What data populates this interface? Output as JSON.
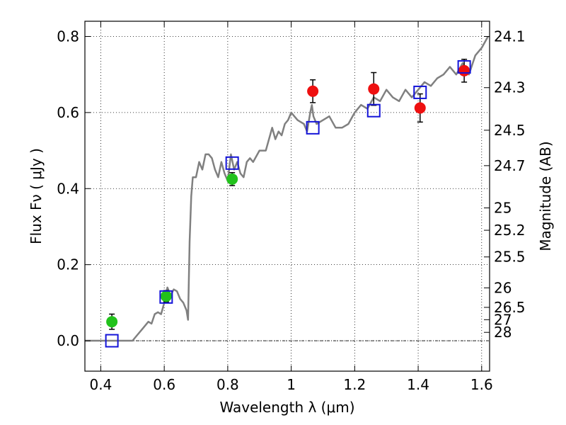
{
  "chart_data": {
    "type": "scatter",
    "xlabel": "Wavelength  λ (μm)",
    "ylabel": "Flux  Fν  ( μJy )",
    "y2label": "Magnitude (AB)",
    "xlim": [
      0.35,
      1.625
    ],
    "ylim": [
      -0.08,
      0.84
    ],
    "grid": true,
    "x_ticks": [
      0.4,
      0.6,
      0.8,
      1.0,
      1.2,
      1.4,
      1.6
    ],
    "x_tick_labels": [
      "0.4",
      "0.6",
      "0.8",
      "1",
      "1.2",
      "1.4",
      "1.6"
    ],
    "y_ticks": [
      0.0,
      0.2,
      0.4,
      0.6,
      0.8
    ],
    "y_tick_labels": [
      "0.0",
      "0.2",
      "0.4",
      "0.6",
      "0.8"
    ],
    "magnitude_ticks": [
      {
        "label": "24.1",
        "mag": 24.1
      },
      {
        "label": "24.3",
        "mag": 24.3
      },
      {
        "label": "24.5",
        "mag": 24.5
      },
      {
        "label": "24.7",
        "mag": 24.7
      },
      {
        "label": "25",
        "mag": 25.0
      },
      {
        "label": "25.2",
        "mag": 25.2
      },
      {
        "label": "25.5",
        "mag": 25.5
      },
      {
        "label": "26",
        "mag": 26.0
      },
      {
        "label": "26.5",
        "mag": 26.5
      },
      {
        "label": "27",
        "mag": 27.0
      },
      {
        "label": "28",
        "mag": 28.0
      }
    ],
    "series": [
      {
        "kind": "line",
        "color": "#808080",
        "x": [
          0.35,
          0.5,
          0.515,
          0.53,
          0.55,
          0.56,
          0.57,
          0.58,
          0.59,
          0.6,
          0.61,
          0.62,
          0.63,
          0.64,
          0.65,
          0.66,
          0.67,
          0.675,
          0.68,
          0.685,
          0.69,
          0.7,
          0.71,
          0.72,
          0.73,
          0.74,
          0.75,
          0.76,
          0.77,
          0.78,
          0.79,
          0.8,
          0.81,
          0.82,
          0.83,
          0.84,
          0.85,
          0.86,
          0.87,
          0.88,
          0.9,
          0.92,
          0.94,
          0.95,
          0.96,
          0.97,
          0.98,
          0.99,
          1.0,
          1.02,
          1.04,
          1.05,
          1.06,
          1.065,
          1.07,
          1.08,
          1.1,
          1.12,
          1.14,
          1.16,
          1.18,
          1.2,
          1.22,
          1.24,
          1.26,
          1.28,
          1.3,
          1.32,
          1.34,
          1.36,
          1.38,
          1.4,
          1.42,
          1.44,
          1.46,
          1.48,
          1.5,
          1.52,
          1.54,
          1.56,
          1.58,
          1.6,
          1.62
        ],
        "y": [
          0.0,
          0.0,
          0.015,
          0.03,
          0.05,
          0.045,
          0.07,
          0.075,
          0.07,
          0.1,
          0.14,
          0.12,
          0.135,
          0.13,
          0.11,
          0.1,
          0.08,
          0.055,
          0.26,
          0.38,
          0.43,
          0.43,
          0.47,
          0.45,
          0.49,
          0.49,
          0.48,
          0.45,
          0.43,
          0.47,
          0.44,
          0.42,
          0.49,
          0.45,
          0.47,
          0.44,
          0.43,
          0.47,
          0.48,
          0.47,
          0.5,
          0.5,
          0.56,
          0.53,
          0.55,
          0.54,
          0.57,
          0.58,
          0.6,
          0.58,
          0.57,
          0.55,
          0.6,
          0.62,
          0.59,
          0.57,
          0.58,
          0.59,
          0.56,
          0.56,
          0.57,
          0.6,
          0.62,
          0.61,
          0.64,
          0.63,
          0.66,
          0.64,
          0.63,
          0.66,
          0.64,
          0.66,
          0.68,
          0.67,
          0.69,
          0.7,
          0.72,
          0.7,
          0.73,
          0.7,
          0.75,
          0.77,
          0.8
        ]
      },
      {
        "kind": "points",
        "marker": "circle",
        "color": "#22c21c",
        "x": [
          0.435,
          0.606,
          0.814
        ],
        "y": [
          0.05,
          0.117,
          0.425
        ],
        "yerr": [
          0.02,
          0.015,
          0.017
        ]
      },
      {
        "kind": "points",
        "marker": "circle",
        "color": "#ee1010",
        "x": [
          1.068,
          1.26,
          1.406,
          1.545
        ],
        "y": [
          0.656,
          0.662,
          0.612,
          0.71
        ],
        "yerr": [
          0.03,
          0.043,
          0.037,
          0.03
        ]
      },
      {
        "kind": "points",
        "marker": "square",
        "color": "#1414d8",
        "x": [
          0.435,
          0.606,
          0.814,
          1.068,
          1.26,
          1.406,
          1.545
        ],
        "y": [
          0.0,
          0.115,
          0.467,
          0.56,
          0.605,
          0.653,
          0.72
        ]
      }
    ]
  }
}
